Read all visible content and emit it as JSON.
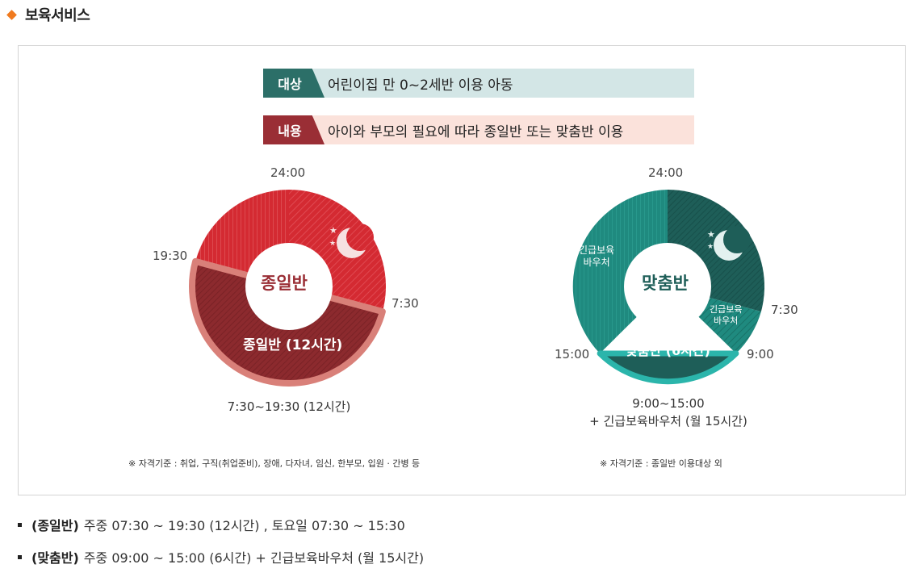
{
  "header": {
    "title": "보육서비스"
  },
  "banner": {
    "target_tag": "대상",
    "target_text": "어린이집 만 0~2세반 이용 아동",
    "content_tag": "내용",
    "content_text": "아이와 부모의 필요에 따라 종일반 또는 맞춤반 이용"
  },
  "left_chart": {
    "center_label": "종일반",
    "band_label": "종일반 (12시간)",
    "time_top": "24:00",
    "time_left": "19:30",
    "time_right": "7:30",
    "caption": "7:30~19:30 (12시간)",
    "note": "※ 자격기준 : 취업, 구직(취업준비), 장애, 다자녀, 임신, 한부모, 입원 · 간병 등",
    "colors": {
      "main": "#d42a32",
      "band": "#8c2a2e",
      "outline": "#d98079"
    }
  },
  "right_chart": {
    "center_label": "맞춤반",
    "band_label": "맞춤반 (6시간)",
    "voucher_left": "긴급보육\n바우처",
    "voucher_right": "긴급보육\n바우처",
    "time_top": "24:00",
    "time_right_upper": "7:30",
    "time_right_lower": "9:00",
    "time_left": "15:00",
    "caption_line1": "9:00~15:00",
    "caption_line2": "+ 긴급보육바우처 (월 15시간)",
    "note": "※ 자격기준 : 종일반 이용대상 외",
    "colors": {
      "main": "#1f8a7f",
      "dark": "#1e5e58",
      "outline": "#2bb5ab"
    }
  },
  "bullets": [
    {
      "term": "(종일반)",
      "text": "주중 07:30 ~ 19:30 (12시간) , 토요일 07:30 ~ 15:30"
    },
    {
      "term": "(맞춤반)",
      "text": "주중 09:00 ~ 15:00 (6시간) + 긴급보육바우처 (월 15시간)"
    }
  ]
}
